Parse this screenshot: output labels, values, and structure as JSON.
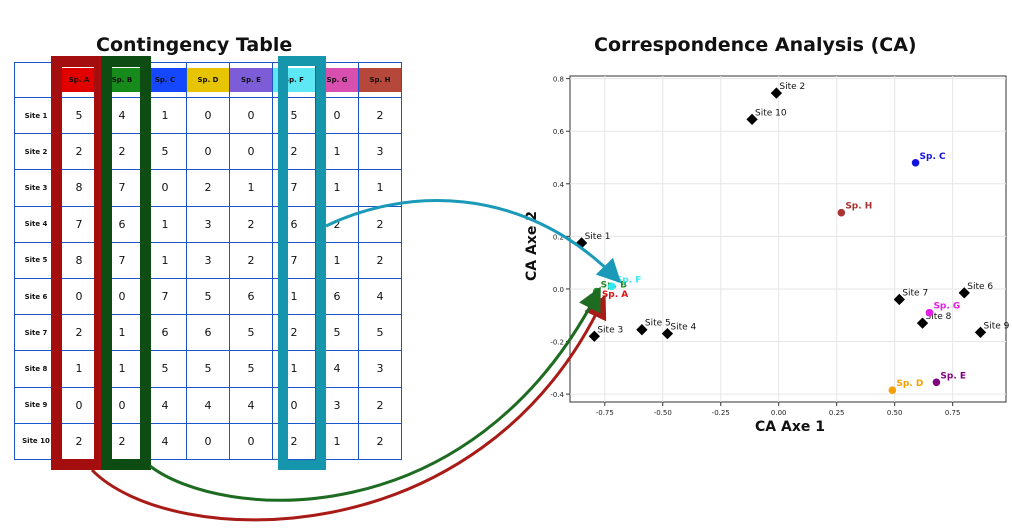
{
  "titles": {
    "left": "Contingency Table",
    "right": "Correspondence Analysis (CA)"
  },
  "colors": {
    "spA_frame": "#a50e0e",
    "spB_frame": "#0d4d14",
    "spF_frame": "#1596ac",
    "arrow_red": "#a81b16",
    "arrow_green": "#1e6b22",
    "arrow_teal": "#1a9ab8",
    "table_border": "#1b55c9"
  },
  "table": {
    "species": [
      {
        "label": "Sp. A",
        "color": "#e00000"
      },
      {
        "label": "Sp. B",
        "color": "#178a1c"
      },
      {
        "label": "Sp. C",
        "color": "#1447ff"
      },
      {
        "label": "Sp. D",
        "color": "#e6c400"
      },
      {
        "label": "Sp. E",
        "color": "#7d5cd8"
      },
      {
        "label": "Sp. F",
        "color": "#5ee8f5"
      },
      {
        "label": "Sp. G",
        "color": "#d84fb0"
      },
      {
        "label": "Sp. H",
        "color": "#b5483b"
      }
    ],
    "rows": [
      {
        "site": "Site 1",
        "values": [
          5,
          4,
          1,
          0,
          0,
          5,
          0,
          2
        ]
      },
      {
        "site": "Site 2",
        "values": [
          2,
          2,
          5,
          0,
          0,
          2,
          1,
          3
        ]
      },
      {
        "site": "Site 3",
        "values": [
          8,
          7,
          0,
          2,
          1,
          7,
          1,
          1
        ]
      },
      {
        "site": "Site 4",
        "values": [
          7,
          6,
          1,
          3,
          2,
          6,
          2,
          2
        ]
      },
      {
        "site": "Site 5",
        "values": [
          8,
          7,
          1,
          3,
          2,
          7,
          1,
          2
        ]
      },
      {
        "site": "Site 6",
        "values": [
          0,
          0,
          7,
          5,
          6,
          1,
          6,
          4
        ]
      },
      {
        "site": "Site 7",
        "values": [
          2,
          1,
          6,
          6,
          5,
          2,
          5,
          5
        ]
      },
      {
        "site": "Site 8",
        "values": [
          1,
          1,
          5,
          5,
          5,
          1,
          4,
          3
        ]
      },
      {
        "site": "Site 9",
        "values": [
          0,
          0,
          4,
          4,
          4,
          0,
          3,
          2
        ]
      },
      {
        "site": "Site 10",
        "values": [
          2,
          2,
          4,
          0,
          0,
          2,
          1,
          2
        ]
      }
    ]
  },
  "chart_data": {
    "type": "scatter",
    "xlabel": "CA Axe 1",
    "ylabel": "CA Axe 2",
    "xlim": [
      -0.9,
      0.98
    ],
    "ylim": [
      -0.43,
      0.81
    ],
    "xticks": [
      "-0.75",
      "-0.50",
      "-0.25",
      "0.00",
      "0.25",
      "0.50",
      "0.75"
    ],
    "xtick_values": [
      -0.75,
      -0.5,
      -0.25,
      0.0,
      0.25,
      0.5,
      0.75
    ],
    "yticks": [
      "-0.4",
      "-0.2",
      "0.0",
      "0.2",
      "0.4",
      "0.6",
      "0.8"
    ],
    "ytick_values": [
      -0.4,
      -0.2,
      0.0,
      0.2,
      0.4,
      0.6,
      0.8
    ],
    "grid": true,
    "sites": [
      {
        "label": "Site 1",
        "x": -0.85,
        "y": 0.175
      },
      {
        "label": "Site 2",
        "x": -0.01,
        "y": 0.745
      },
      {
        "label": "Site 3",
        "x": -0.795,
        "y": -0.18
      },
      {
        "label": "Site 4",
        "x": -0.48,
        "y": -0.17
      },
      {
        "label": "Site 5",
        "x": -0.59,
        "y": -0.155
      },
      {
        "label": "Site 6",
        "x": 0.8,
        "y": -0.015
      },
      {
        "label": "Site 7",
        "x": 0.52,
        "y": -0.04
      },
      {
        "label": "Site 8",
        "x": 0.62,
        "y": -0.13
      },
      {
        "label": "Site 9",
        "x": 0.87,
        "y": -0.165
      },
      {
        "label": "Site 10",
        "x": -0.115,
        "y": 0.645
      }
    ],
    "species": [
      {
        "label": "Sp. A",
        "x": -0.78,
        "y": -0.045,
        "color": "#e01010"
      },
      {
        "label": "Sp. B",
        "x": -0.785,
        "y": -0.01,
        "color": "#1f8a24"
      },
      {
        "label": "Sp. C",
        "x": 0.59,
        "y": 0.48,
        "color": "#1414e0"
      },
      {
        "label": "Sp. D",
        "x": 0.49,
        "y": -0.385,
        "color": "#f5a000"
      },
      {
        "label": "Sp. E",
        "x": 0.68,
        "y": -0.355,
        "color": "#800080"
      },
      {
        "label": "Sp. F",
        "x": -0.72,
        "y": 0.01,
        "color": "#35e8f0"
      },
      {
        "label": "Sp. G",
        "x": 0.65,
        "y": -0.09,
        "color": "#e81ce8"
      },
      {
        "label": "Sp. H",
        "x": 0.27,
        "y": 0.29,
        "color": "#a83232"
      }
    ]
  }
}
